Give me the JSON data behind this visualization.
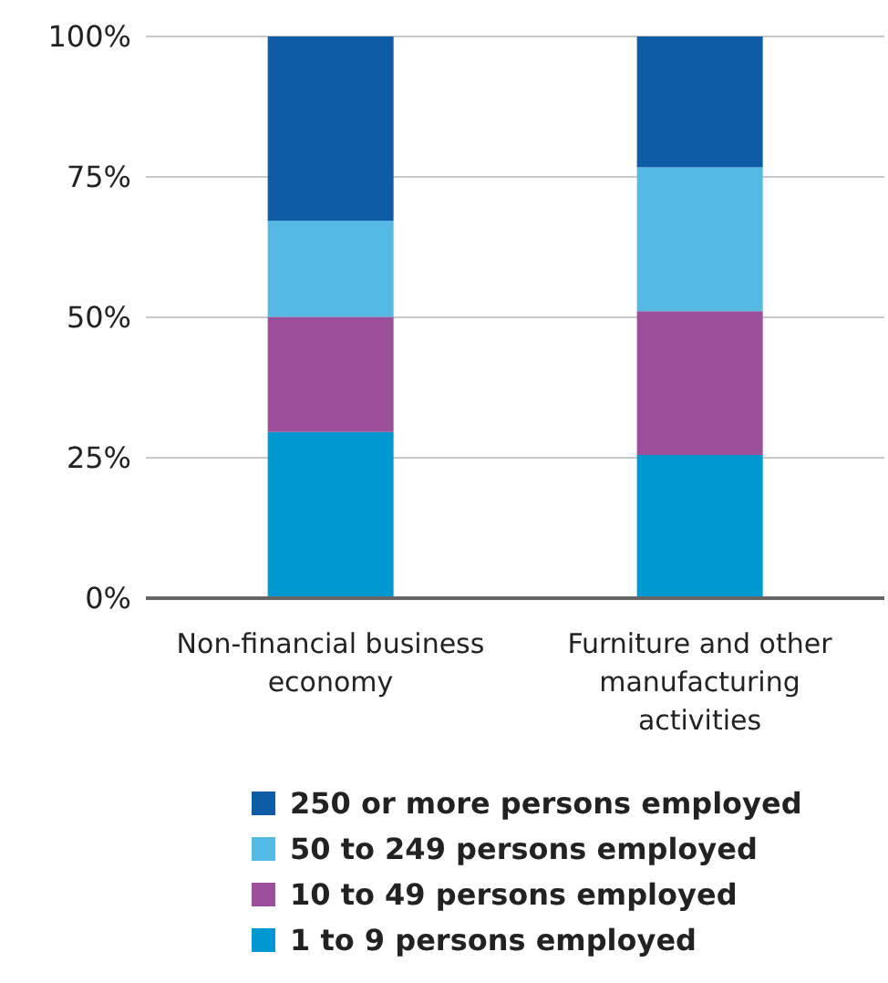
{
  "chart_data": {
    "type": "bar",
    "stacked": true,
    "categories": [
      "Non-financial business economy",
      "Furniture and other manufacturing activities"
    ],
    "series": [
      {
        "name": "1 to 9 persons employed",
        "color": "#0098d1",
        "values": [
          29.6,
          25.5
        ]
      },
      {
        "name": "10 to 49 persons employed",
        "color": "#9b4f9b",
        "values": [
          20.5,
          25.6
        ]
      },
      {
        "name": "50 to 249 persons employed",
        "color": "#56b9e3",
        "values": [
          17.1,
          25.6
        ]
      },
      {
        "name": "250 or more persons employed",
        "color": "#0d5ca5",
        "values": [
          32.8,
          23.3
        ]
      }
    ],
    "ylim": [
      0,
      100
    ],
    "yticks": [
      {
        "value": 0,
        "label": "0%"
      },
      {
        "value": 25,
        "label": "25%"
      },
      {
        "value": 50,
        "label": "50%"
      },
      {
        "value": 75,
        "label": "75%"
      },
      {
        "value": 100,
        "label": "100%"
      }
    ],
    "grid": "y",
    "legend": "bottom"
  }
}
